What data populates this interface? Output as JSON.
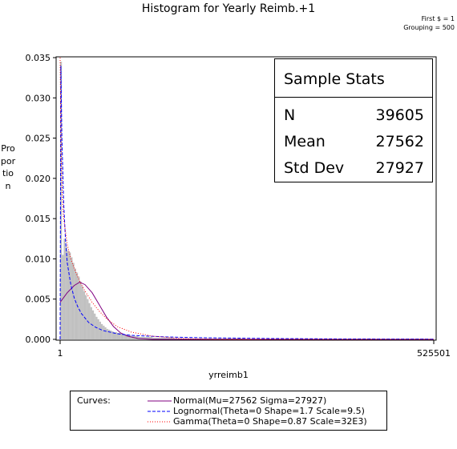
{
  "title": "Histogram for Yearly Reimb.+1",
  "notes": [
    "First $ = 1",
    "Grouping = 500"
  ],
  "legend": {
    "title": "Curves:",
    "items": [
      {
        "label": "Normal(Mu=27562 Sigma=27927)",
        "color": "#800080",
        "dash": "solid"
      },
      {
        "label": "Lognormal(Theta=0 Shape=1.7 Scale=9.5)",
        "color": "#0000ff",
        "dash": "dashed"
      },
      {
        "label": "Gamma(Theta=0 Shape=0.87 Scale=32E3)",
        "color": "#ff0000",
        "dash": "dotted"
      }
    ]
  },
  "stats": {
    "title": "Sample Stats",
    "rows": [
      {
        "label": "N",
        "value": "39605"
      },
      {
        "label": "Mean",
        "value": "27562"
      },
      {
        "label": "Std Dev",
        "value": "27927"
      }
    ]
  },
  "chart_data": {
    "type": "bar",
    "xlabel": "yrreimb1",
    "ylabel": "Proportion",
    "xlim": [
      1,
      525501
    ],
    "ylim": [
      0,
      0.035
    ],
    "x_ticks": [
      "1",
      "525501"
    ],
    "y_ticks": [
      "0.000",
      "0.005",
      "0.010",
      "0.015",
      "0.020",
      "0.025",
      "0.030",
      "0.035"
    ],
    "bin_width": 500,
    "bar_color": "#c0c0c0",
    "histogram": [
      {
        "x": 1,
        "y": 0.0345
      },
      {
        "x": 2500,
        "y": 0.0105
      },
      {
        "x": 5000,
        "y": 0.0125
      },
      {
        "x": 7500,
        "y": 0.0115
      },
      {
        "x": 10000,
        "y": 0.011
      },
      {
        "x": 12500,
        "y": 0.0108
      },
      {
        "x": 15000,
        "y": 0.0102
      },
      {
        "x": 17500,
        "y": 0.0095
      },
      {
        "x": 20000,
        "y": 0.0088
      },
      {
        "x": 22500,
        "y": 0.0083
      },
      {
        "x": 25000,
        "y": 0.0078
      },
      {
        "x": 27500,
        "y": 0.0072
      },
      {
        "x": 30000,
        "y": 0.0066
      },
      {
        "x": 32500,
        "y": 0.006
      },
      {
        "x": 35000,
        "y": 0.0055
      },
      {
        "x": 37500,
        "y": 0.005
      },
      {
        "x": 40000,
        "y": 0.0045
      },
      {
        "x": 42500,
        "y": 0.004
      },
      {
        "x": 45000,
        "y": 0.0036
      },
      {
        "x": 47500,
        "y": 0.0032
      },
      {
        "x": 50000,
        "y": 0.0028
      },
      {
        "x": 52500,
        "y": 0.0025
      },
      {
        "x": 55000,
        "y": 0.0022
      },
      {
        "x": 57500,
        "y": 0.0019
      },
      {
        "x": 60000,
        "y": 0.0017
      },
      {
        "x": 62500,
        "y": 0.0015
      },
      {
        "x": 65000,
        "y": 0.0013
      },
      {
        "x": 67500,
        "y": 0.0012
      },
      {
        "x": 70000,
        "y": 0.0011
      },
      {
        "x": 72500,
        "y": 0.001
      },
      {
        "x": 75000,
        "y": 0.0009
      },
      {
        "x": 80000,
        "y": 0.0008
      },
      {
        "x": 85000,
        "y": 0.0007
      },
      {
        "x": 90000,
        "y": 0.0006
      },
      {
        "x": 95000,
        "y": 0.0005
      },
      {
        "x": 100000,
        "y": 0.0004
      },
      {
        "x": 105000,
        "y": 0.0004
      },
      {
        "x": 110000,
        "y": 0.0003
      },
      {
        "x": 120000,
        "y": 0.0003
      },
      {
        "x": 130000,
        "y": 0.0002
      },
      {
        "x": 140000,
        "y": 0.0002
      },
      {
        "x": 150000,
        "y": 0.0002
      },
      {
        "x": 160000,
        "y": 0.0001
      },
      {
        "x": 180000,
        "y": 0.0001
      },
      {
        "x": 200000,
        "y": 0.0001
      },
      {
        "x": 230000,
        "y": 0.0001
      },
      {
        "x": 260000,
        "y": 5e-05
      },
      {
        "x": 300000,
        "y": 5e-05
      }
    ],
    "series": [
      {
        "name": "Normal(Mu=27562 Sigma=27927)",
        "color": "#800080",
        "dash": "solid",
        "points": [
          [
            1,
            0.0046
          ],
          [
            10000,
            0.0058
          ],
          [
            20000,
            0.0067
          ],
          [
            27562,
            0.0071
          ],
          [
            35000,
            0.0068
          ],
          [
            45000,
            0.0058
          ],
          [
            55000,
            0.0043
          ],
          [
            65000,
            0.0028
          ],
          [
            75000,
            0.0016
          ],
          [
            85000,
            0.0008
          ],
          [
            95000,
            0.0004
          ],
          [
            110000,
            0.0001
          ],
          [
            130000,
            0.0
          ],
          [
            200000,
            0.0
          ],
          [
            300000,
            0.0
          ],
          [
            525501,
            0.0
          ]
        ]
      },
      {
        "name": "Lognormal(Theta=0 Shape=1.7 Scale=9.5)",
        "color": "#0000ff",
        "dash": "dashed",
        "points": [
          [
            1,
            0.0
          ],
          [
            1000,
            0.034
          ],
          [
            2500,
            0.025
          ],
          [
            5000,
            0.017
          ],
          [
            7500,
            0.0125
          ],
          [
            10000,
            0.0095
          ],
          [
            15000,
            0.0068
          ],
          [
            20000,
            0.0051
          ],
          [
            25000,
            0.004
          ],
          [
            30000,
            0.0032
          ],
          [
            40000,
            0.0021
          ],
          [
            50000,
            0.0015
          ],
          [
            60000,
            0.0011
          ],
          [
            80000,
            0.0007
          ],
          [
            100000,
            0.0005
          ],
          [
            150000,
            0.0003
          ],
          [
            200000,
            0.0002
          ],
          [
            300000,
            0.0001
          ],
          [
            400000,
            5e-05
          ],
          [
            525501,
            3e-05
          ]
        ]
      },
      {
        "name": "Gamma(Theta=0 Shape=0.87 Scale=32E3)",
        "color": "#ff0000",
        "dash": "dotted",
        "points": [
          [
            1,
            0.035
          ],
          [
            1500,
            0.023
          ],
          [
            3000,
            0.018
          ],
          [
            5000,
            0.015
          ],
          [
            10000,
            0.0118
          ],
          [
            15000,
            0.01
          ],
          [
            20000,
            0.0088
          ],
          [
            27000,
            0.0073
          ],
          [
            35000,
            0.006
          ],
          [
            45000,
            0.0046
          ],
          [
            55000,
            0.0035
          ],
          [
            65000,
            0.0026
          ],
          [
            80000,
            0.0016
          ],
          [
            100000,
            0.0009
          ],
          [
            130000,
            0.0004
          ],
          [
            170000,
            0.0001
          ],
          [
            220000,
            0.0
          ],
          [
            525501,
            0.0
          ]
        ]
      }
    ]
  }
}
